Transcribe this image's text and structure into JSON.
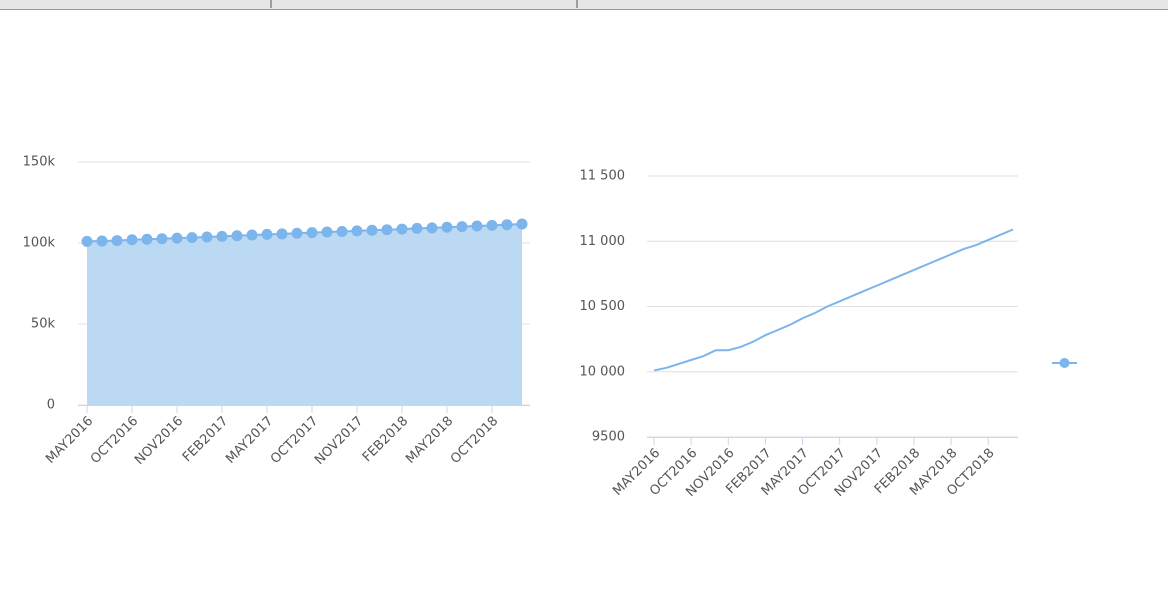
{
  "chart_data": [
    {
      "type": "area",
      "categories": [
        "MAY2016",
        null,
        null,
        "OCT2016",
        null,
        null,
        "NOV2016",
        null,
        null,
        "FEB2017",
        null,
        null,
        "MAY2017",
        null,
        null,
        "OCT2017",
        null,
        null,
        "NOV2017",
        null,
        null,
        "FEB2018",
        null,
        null,
        "MAY2018",
        null,
        null,
        "OCT2018",
        null,
        null
      ],
      "values": [
        101000,
        101200,
        101500,
        102000,
        102300,
        102600,
        103000,
        103300,
        103700,
        104100,
        104500,
        104900,
        105300,
        105600,
        106000,
        106400,
        106800,
        107100,
        107500,
        107900,
        108200,
        108600,
        109000,
        109300,
        109700,
        110100,
        110500,
        110900,
        111300,
        111700
      ],
      "color": "#7cb5ec",
      "ylim": [
        0,
        150000
      ],
      "yticks": [
        0,
        {
          "value": 50000,
          "label": "50k"
        },
        {
          "value": 100000,
          "label": "100k"
        },
        {
          "value": 150000,
          "label": "150k"
        }
      ],
      "grid": true
    },
    {
      "type": "line",
      "categories": [
        "MAY2016",
        null,
        null,
        "OCT2016",
        null,
        null,
        "NOV2016",
        null,
        null,
        "FEB2017",
        null,
        null,
        "MAY2017",
        null,
        null,
        "OCT2017",
        null,
        null,
        "NOV2017",
        null,
        null,
        "FEB2018",
        null,
        null,
        "MAY2018",
        null,
        null,
        "OCT2018",
        null,
        null
      ],
      "values": [
        10010,
        10030,
        10060,
        10090,
        10120,
        10165,
        10165,
        10190,
        10230,
        10280,
        10320,
        10360,
        10410,
        10450,
        10500,
        10540,
        10580,
        10620,
        10660,
        10700,
        10740,
        10780,
        10820,
        10860,
        10900,
        10940,
        10970,
        11010,
        11050,
        11090
      ],
      "color": "#7cb5ec",
      "ylim": [
        9500,
        11500
      ],
      "yticks": [
        9500,
        {
          "value": 10000,
          "label": "10 000"
        },
        {
          "value": 10500,
          "label": "10 500"
        },
        {
          "value": 11000,
          "label": "11 000"
        },
        {
          "value": 11500,
          "label": "11 500"
        }
      ],
      "grid": true
    }
  ]
}
